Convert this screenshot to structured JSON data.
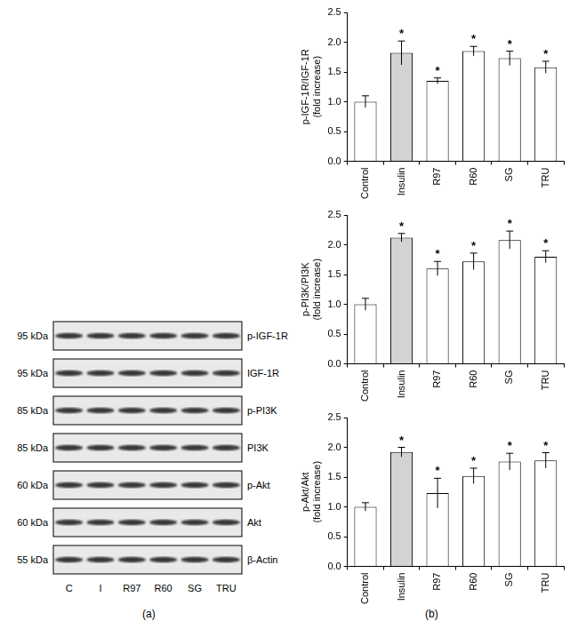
{
  "panels": {
    "a": "(a)",
    "b": "(b)"
  },
  "blot": {
    "lanes": [
      "C",
      "I",
      "R97",
      "R60",
      "SG",
      "TRU"
    ],
    "rows": [
      {
        "size": "95 kDa",
        "protein": "p-IGF-1R"
      },
      {
        "size": "95 kDa",
        "protein": "IGF-1R"
      },
      {
        "size": "85 kDa",
        "protein": "p-PI3K"
      },
      {
        "size": "85 kDa",
        "protein": "PI3K"
      },
      {
        "size": "60 kDa",
        "protein": "p-Akt"
      },
      {
        "size": "60 kDa",
        "protein": "Akt"
      },
      {
        "size": "55 kDa",
        "protein": "β-Actin"
      }
    ]
  },
  "chart_data": [
    {
      "type": "bar",
      "ylabel": [
        "p-IGF-1R/IGF-1R",
        "(fold increase)"
      ],
      "categories": [
        "Control",
        "Insulin",
        "R97",
        "R60",
        "SG",
        "TRU"
      ],
      "values": [
        1.0,
        1.82,
        1.35,
        1.85,
        1.73,
        1.58
      ],
      "errors": [
        0.1,
        0.2,
        0.05,
        0.08,
        0.12,
        0.1
      ],
      "annotations": [
        null,
        "*",
        "*",
        "*",
        "*",
        "*"
      ],
      "colors": [
        "#ffffff",
        "#d3d3d3",
        "#ffffff",
        "#ffffff",
        "#ffffff",
        "#ffffff"
      ],
      "ylim": [
        0,
        2.5
      ],
      "yticks": [
        {
          "value": 0,
          "label": "0.0"
        },
        {
          "value": 0.5,
          "label": "0.5"
        },
        {
          "value": 1,
          "label": "1.0"
        },
        {
          "value": 1.5,
          "label": "1.5"
        },
        {
          "value": 2,
          "label": "2.0"
        },
        {
          "value": 2.5,
          "label": "2.5"
        }
      ],
      "grid": false
    },
    {
      "type": "bar",
      "ylabel": [
        "p-PI3K/PI3K",
        "(fold increase)"
      ],
      "categories": [
        "Control",
        "Insulin",
        "R97",
        "R60",
        "SG",
        "TRU"
      ],
      "values": [
        1.0,
        2.12,
        1.6,
        1.72,
        2.08,
        1.8
      ],
      "errors": [
        0.1,
        0.07,
        0.12,
        0.14,
        0.15,
        0.1
      ],
      "annotations": [
        null,
        "*",
        "*",
        "*",
        "*",
        "*"
      ],
      "colors": [
        "#ffffff",
        "#d3d3d3",
        "#ffffff",
        "#ffffff",
        "#ffffff",
        "#ffffff"
      ],
      "ylim": [
        0,
        2.5
      ],
      "yticks": [
        {
          "value": 0,
          "label": "0.0"
        },
        {
          "value": 0.5,
          "label": "0.5"
        },
        {
          "value": 1,
          "label": "1.0"
        },
        {
          "value": 1.5,
          "label": "1.5"
        },
        {
          "value": 2,
          "label": "2.0"
        },
        {
          "value": 2.5,
          "label": "2.5"
        }
      ],
      "grid": false
    },
    {
      "type": "bar",
      "ylabel": [
        "p-Akt/Akt",
        "(fold increase)"
      ],
      "categories": [
        "Control",
        "Insulin",
        "R97",
        "R60",
        "SG",
        "TRU"
      ],
      "values": [
        1.0,
        1.92,
        1.23,
        1.52,
        1.76,
        1.78
      ],
      "errors": [
        0.07,
        0.08,
        0.25,
        0.13,
        0.14,
        0.13
      ],
      "annotations": [
        null,
        "*",
        "*",
        "*",
        "*",
        "*"
      ],
      "colors": [
        "#ffffff",
        "#d3d3d3",
        "#ffffff",
        "#ffffff",
        "#ffffff",
        "#ffffff"
      ],
      "ylim": [
        0,
        2.5
      ],
      "yticks": [
        {
          "value": 0,
          "label": "0.0"
        },
        {
          "value": 0.5,
          "label": "0.5"
        },
        {
          "value": 1,
          "label": "1.0"
        },
        {
          "value": 1.5,
          "label": "1.5"
        },
        {
          "value": 2,
          "label": "2.0"
        },
        {
          "value": 2.5,
          "label": "2.5"
        }
      ],
      "grid": false
    }
  ]
}
